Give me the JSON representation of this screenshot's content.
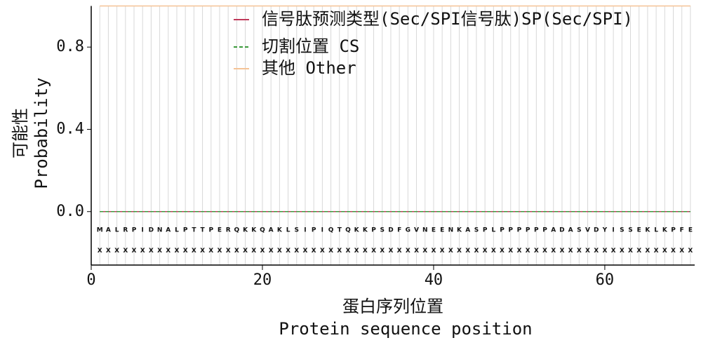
{
  "chart_data": {
    "type": "line",
    "xlabel": [
      "蛋白序列位置",
      "Protein sequence position"
    ],
    "ylabel": [
      "可能性",
      "Probability"
    ],
    "x": [
      1,
      2,
      3,
      4,
      5,
      6,
      7,
      8,
      9,
      10,
      11,
      12,
      13,
      14,
      15,
      16,
      17,
      18,
      19,
      20,
      21,
      22,
      23,
      24,
      25,
      26,
      27,
      28,
      29,
      30,
      31,
      32,
      33,
      34,
      35,
      36,
      37,
      38,
      39,
      40,
      41,
      42,
      43,
      44,
      45,
      46,
      47,
      48,
      49,
      50,
      51,
      52,
      53,
      54,
      55,
      56,
      57,
      58,
      59,
      60,
      61,
      62,
      63,
      64,
      65,
      66,
      67,
      68,
      69,
      70
    ],
    "residues": [
      "M",
      "A",
      "L",
      "R",
      "P",
      "I",
      "D",
      "N",
      "A",
      "L",
      "P",
      "T",
      "T",
      "P",
      "E",
      "R",
      "Q",
      "K",
      "K",
      "Q",
      "A",
      "K",
      "L",
      "S",
      "I",
      "P",
      "I",
      "Q",
      "T",
      "Q",
      "K",
      "K",
      "P",
      "S",
      "D",
      "F",
      "G",
      "V",
      "N",
      "E",
      "E",
      "N",
      "K",
      "A",
      "S",
      "P",
      "L",
      "P",
      "P",
      "P",
      "P",
      "P",
      "P",
      "A",
      "D",
      "A",
      "S",
      "V",
      "D",
      "Y",
      "I",
      "S",
      "S",
      "E",
      "K",
      "L",
      "K",
      "P",
      "F",
      "E"
    ],
    "markers": [
      "X",
      "X",
      "X",
      "X",
      "X",
      "X",
      "X",
      "X",
      "X",
      "X",
      "X",
      "X",
      "X",
      "X",
      "X",
      "X",
      "X",
      "X",
      "X",
      "X",
      "X",
      "X",
      "X",
      "X",
      "X",
      "X",
      "X",
      "X",
      "X",
      "X",
      "X",
      "X",
      "X",
      "X",
      "X",
      "X",
      "X",
      "X",
      "X",
      "X",
      "X",
      "X",
      "X",
      "X",
      "X",
      "X",
      "X",
      "X",
      "X",
      "X",
      "X",
      "X",
      "X",
      "X",
      "X",
      "X",
      "X",
      "X",
      "X",
      "X",
      "X",
      "X",
      "X",
      "X",
      "X",
      "X",
      "X",
      "X",
      "X",
      "X"
    ],
    "series": [
      {
        "name": "信号肽预测类型(Sec/SPI信号肽)SP(Sec/SPI)",
        "color": "#c0395a",
        "dash": false,
        "values": [
          0,
          0,
          0,
          0,
          0,
          0,
          0,
          0,
          0,
          0,
          0,
          0,
          0,
          0,
          0,
          0,
          0,
          0,
          0,
          0,
          0,
          0,
          0,
          0,
          0,
          0,
          0,
          0,
          0,
          0,
          0,
          0,
          0,
          0,
          0,
          0,
          0,
          0,
          0,
          0,
          0,
          0,
          0,
          0,
          0,
          0,
          0,
          0,
          0,
          0,
          0,
          0,
          0,
          0,
          0,
          0,
          0,
          0,
          0,
          0,
          0,
          0,
          0,
          0,
          0,
          0,
          0,
          0,
          0,
          0
        ]
      },
      {
        "name": "切割位置 CS",
        "color": "#3a9a3a",
        "dash": true,
        "values": [
          0,
          0,
          0,
          0,
          0,
          0,
          0,
          0,
          0,
          0,
          0,
          0,
          0,
          0,
          0,
          0,
          0,
          0,
          0,
          0,
          0,
          0,
          0,
          0,
          0,
          0,
          0,
          0,
          0,
          0,
          0,
          0,
          0,
          0,
          0,
          0,
          0,
          0,
          0,
          0,
          0,
          0,
          0,
          0,
          0,
          0,
          0,
          0,
          0,
          0,
          0,
          0,
          0,
          0,
          0,
          0,
          0,
          0,
          0,
          0,
          0,
          0,
          0,
          0,
          0,
          0,
          0,
          0,
          0,
          0
        ]
      },
      {
        "name": "其他 Other",
        "color": "#f5c396",
        "dash": false,
        "values": [
          1,
          1,
          1,
          1,
          1,
          1,
          1,
          1,
          1,
          1,
          1,
          1,
          1,
          1,
          1,
          1,
          1,
          1,
          1,
          1,
          1,
          1,
          1,
          1,
          1,
          1,
          1,
          1,
          1,
          1,
          1,
          1,
          1,
          1,
          1,
          1,
          1,
          1,
          1,
          1,
          1,
          1,
          1,
          1,
          1,
          1,
          1,
          1,
          1,
          1,
          1,
          1,
          1,
          1,
          1,
          1,
          1,
          1,
          1,
          1,
          1,
          1,
          1,
          1,
          1,
          1,
          1,
          1,
          1,
          1
        ]
      }
    ],
    "xlim": [
      0,
      70.5
    ],
    "xticks": [
      0,
      20,
      40,
      60
    ],
    "ylim": [
      -0.26,
      1.0
    ],
    "yticks": [
      {
        "value": 0,
        "label": "0.0"
      },
      {
        "value": 0.4,
        "label": "0.4"
      },
      {
        "value": 0.8,
        "label": "0.8"
      }
    ],
    "legend": "upper center"
  }
}
